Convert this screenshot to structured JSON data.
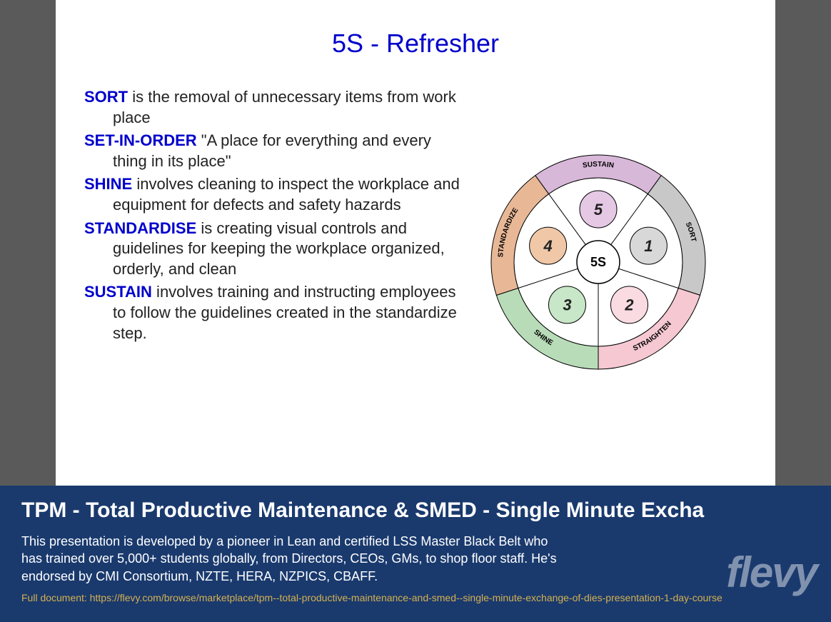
{
  "slide": {
    "title": "5S - Refresher",
    "title_color": "#0000cc",
    "items": [
      {
        "term": "SORT",
        "text": " is the removal of unnecessary items from work place"
      },
      {
        "term": "SET-IN-ORDER",
        "text": " \"A place for everything and every thing in its place\""
      },
      {
        "term": "SHINE",
        "text": " involves cleaning to inspect the workplace and equipment for defects and safety hazards"
      },
      {
        "term": "STANDARDISE",
        "text": " is creating visual controls and guidelines for keeping the workplace organized, orderly, and clean"
      },
      {
        "term": "SUSTAIN",
        "text": " involves training and instructing employees to follow the guidelines created in the standardize step."
      }
    ],
    "term_color": "#0000cc",
    "body_color": "#222222",
    "body_fontsize": 22
  },
  "diagram": {
    "type": "radial-segmented-circle",
    "center_label": "5S",
    "outer_radius": 150,
    "ring_inner_radius": 118,
    "inner_circle_radius": 30,
    "center_fill": "#ffffff",
    "stroke": "#000000",
    "segments": [
      {
        "label": "SORT",
        "angle_start": -54,
        "angle_end": 18,
        "fill": "#c8c8c8",
        "num": "1",
        "num_fill": "#d8d8d8"
      },
      {
        "label": "STRAIGHTEN",
        "angle_start": 18,
        "angle_end": 90,
        "fill": "#f5c8d2",
        "num": "2",
        "num_fill": "#fadbe2"
      },
      {
        "label": "SHINE",
        "angle_start": 90,
        "angle_end": 162,
        "fill": "#b8dcb8",
        "num": "3",
        "num_fill": "#c8e6c8"
      },
      {
        "label": "STANDARDIZE",
        "angle_start": 162,
        "angle_end": 234,
        "fill": "#e8b896",
        "num": "4",
        "num_fill": "#f0c8a8"
      },
      {
        "label": "SUSTAIN",
        "angle_start": 234,
        "angle_end": 306,
        "fill": "#d8b8d8",
        "num": "5",
        "num_fill": "#e4c8e4"
      }
    ]
  },
  "footer": {
    "background": "#1a3a6e",
    "title": "TPM - Total Productive Maintenance & SMED - Single Minute Excha",
    "description": "This presentation is developed by a pioneer in Lean and certified LSS Master Black Belt who has trained over 5,000+ students globally, from Directors, CEOs, GMs, to shop floor staff. He's endorsed by CMI Consortium, NZTE, HERA, NZPICS, CBAFF.",
    "link_prefix": "Full document: ",
    "link_url": "https://flevy.com/browse/marketplace/tpm--total-productive-maintenance-and-smed--single-minute-exchange-of-dies-presentation-1-day-course",
    "link_color": "#d4b050",
    "brand": "flevy"
  }
}
